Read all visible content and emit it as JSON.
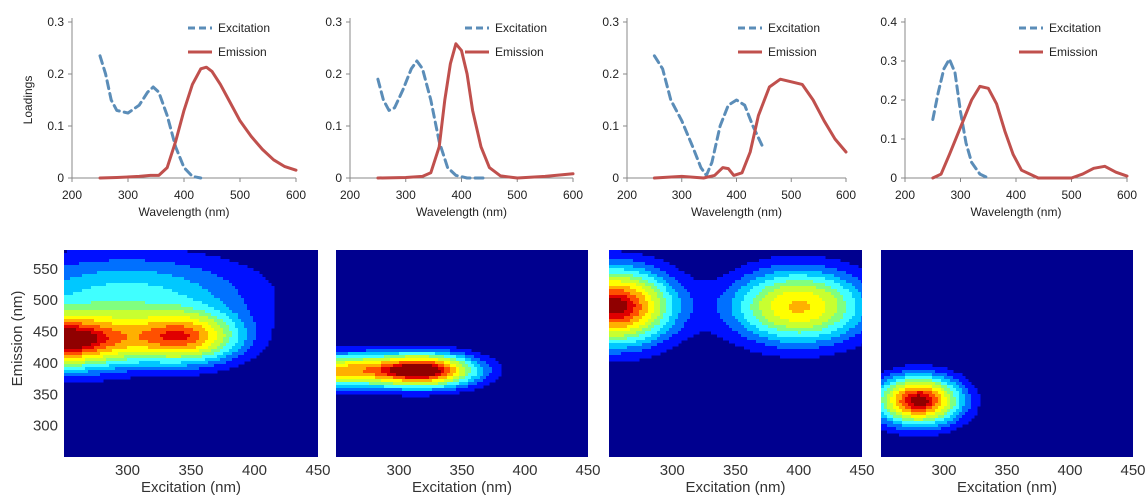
{
  "colors": {
    "excitation": "#5b8db8",
    "emission": "#c0504d",
    "heatmap_background": "#00008f"
  },
  "chart_data": [
    {
      "type": "line",
      "xlabel": "Wavelength (nm)",
      "ylabel": "Loadings",
      "xlim": [
        200,
        600
      ],
      "xticks": [
        "200",
        "300",
        "400",
        "500",
        "600"
      ],
      "ylim": [
        0,
        0.3
      ],
      "yticks": [
        "0",
        "0.1",
        "0.2",
        "0.3"
      ],
      "legend": [
        "Excitation",
        "Emission"
      ],
      "series": [
        {
          "name": "Excitation",
          "style": "dashed",
          "points": [
            [
              250,
              0.235
            ],
            [
              260,
              0.2
            ],
            [
              270,
              0.15
            ],
            [
              280,
              0.13
            ],
            [
              300,
              0.125
            ],
            [
              320,
              0.14
            ],
            [
              335,
              0.165
            ],
            [
              345,
              0.175
            ],
            [
              355,
              0.165
            ],
            [
              370,
              0.12
            ],
            [
              385,
              0.06
            ],
            [
              400,
              0.02
            ],
            [
              415,
              0.003
            ],
            [
              430,
              0.0
            ]
          ]
        },
        {
          "name": "Emission",
          "style": "solid",
          "points": [
            [
              250,
              0
            ],
            [
              280,
              0.001
            ],
            [
              320,
              0.003
            ],
            [
              340,
              0.005
            ],
            [
              355,
              0.005
            ],
            [
              370,
              0.02
            ],
            [
              385,
              0.07
            ],
            [
              400,
              0.13
            ],
            [
              415,
              0.18
            ],
            [
              430,
              0.21
            ],
            [
              440,
              0.213
            ],
            [
              450,
              0.205
            ],
            [
              465,
              0.18
            ],
            [
              480,
              0.15
            ],
            [
              500,
              0.11
            ],
            [
              520,
              0.08
            ],
            [
              540,
              0.055
            ],
            [
              560,
              0.035
            ],
            [
              580,
              0.022
            ],
            [
              600,
              0.015
            ]
          ]
        }
      ]
    },
    {
      "type": "line",
      "xlabel": "Wavelength (nm)",
      "ylabel": "",
      "xlim": [
        200,
        600
      ],
      "xticks": [
        "200",
        "300",
        "400",
        "500",
        "600"
      ],
      "ylim": [
        0,
        0.3
      ],
      "yticks": [
        "0",
        "0.1",
        "0.2",
        "0.3"
      ],
      "legend": [
        "Excitation",
        "Emission"
      ],
      "series": [
        {
          "name": "Excitation",
          "style": "dashed",
          "points": [
            [
              250,
              0.19
            ],
            [
              260,
              0.15
            ],
            [
              270,
              0.13
            ],
            [
              280,
              0.135
            ],
            [
              295,
              0.17
            ],
            [
              310,
              0.21
            ],
            [
              320,
              0.225
            ],
            [
              330,
              0.21
            ],
            [
              345,
              0.15
            ],
            [
              360,
              0.07
            ],
            [
              375,
              0.02
            ],
            [
              390,
              0.005
            ],
            [
              410,
              0.0
            ],
            [
              440,
              0.0
            ]
          ]
        },
        {
          "name": "Emission",
          "style": "solid",
          "points": [
            [
              250,
              0
            ],
            [
              300,
              0.001
            ],
            [
              330,
              0.003
            ],
            [
              345,
              0.01
            ],
            [
              360,
              0.06
            ],
            [
              370,
              0.15
            ],
            [
              380,
              0.22
            ],
            [
              390,
              0.258
            ],
            [
              400,
              0.245
            ],
            [
              410,
              0.2
            ],
            [
              420,
              0.13
            ],
            [
              435,
              0.06
            ],
            [
              450,
              0.02
            ],
            [
              470,
              0.004
            ],
            [
              500,
              0.0
            ],
            [
              550,
              0.003
            ],
            [
              600,
              0.008
            ]
          ]
        }
      ]
    },
    {
      "type": "line",
      "xlabel": "Wavelength (nm)",
      "ylabel": "",
      "xlim": [
        200,
        600
      ],
      "xticks": [
        "200",
        "300",
        "400",
        "500",
        "600"
      ],
      "ylim": [
        0,
        0.3
      ],
      "yticks": [
        "0",
        "0.1",
        "0.2",
        "0.3"
      ],
      "legend": [
        "Excitation",
        "Emission"
      ],
      "series": [
        {
          "name": "Excitation",
          "style": "dashed",
          "points": [
            [
              250,
              0.235
            ],
            [
              265,
              0.21
            ],
            [
              280,
              0.15
            ],
            [
              300,
              0.11
            ],
            [
              320,
              0.06
            ],
            [
              335,
              0.02
            ],
            [
              345,
              0.005
            ],
            [
              355,
              0.03
            ],
            [
              370,
              0.1
            ],
            [
              385,
              0.14
            ],
            [
              400,
              0.15
            ],
            [
              415,
              0.14
            ],
            [
              430,
              0.1
            ],
            [
              450,
              0.055
            ]
          ]
        },
        {
          "name": "Emission",
          "style": "solid",
          "points": [
            [
              250,
              0
            ],
            [
              300,
              0.003
            ],
            [
              340,
              0.0
            ],
            [
              360,
              0.005
            ],
            [
              375,
              0.02
            ],
            [
              385,
              0.018
            ],
            [
              395,
              0.005
            ],
            [
              410,
              0.01
            ],
            [
              425,
              0.05
            ],
            [
              440,
              0.12
            ],
            [
              460,
              0.175
            ],
            [
              480,
              0.19
            ],
            [
              500,
              0.185
            ],
            [
              520,
              0.18
            ],
            [
              540,
              0.15
            ],
            [
              560,
              0.11
            ],
            [
              580,
              0.075
            ],
            [
              600,
              0.05
            ]
          ]
        }
      ]
    },
    {
      "type": "line",
      "xlabel": "Wavelength (nm)",
      "ylabel": "",
      "xlim": [
        200,
        600
      ],
      "xticks": [
        "200",
        "300",
        "400",
        "500",
        "600"
      ],
      "ylim": [
        0,
        0.4
      ],
      "yticks": [
        "0",
        "0.1",
        "0.2",
        "0.3",
        "0.4"
      ],
      "legend": [
        "Excitation",
        "Emission"
      ],
      "series": [
        {
          "name": "Excitation",
          "style": "dashed",
          "points": [
            [
              250,
              0.15
            ],
            [
              260,
              0.22
            ],
            [
              270,
              0.28
            ],
            [
              280,
              0.305
            ],
            [
              290,
              0.27
            ],
            [
              300,
              0.17
            ],
            [
              310,
              0.09
            ],
            [
              320,
              0.04
            ],
            [
              335,
              0.01
            ],
            [
              350,
              0.0
            ]
          ]
        },
        {
          "name": "Emission",
          "style": "solid",
          "points": [
            [
              250,
              0.0
            ],
            [
              265,
              0.01
            ],
            [
              280,
              0.06
            ],
            [
              300,
              0.13
            ],
            [
              320,
              0.2
            ],
            [
              335,
              0.235
            ],
            [
              350,
              0.23
            ],
            [
              365,
              0.19
            ],
            [
              380,
              0.12
            ],
            [
              395,
              0.06
            ],
            [
              410,
              0.02
            ],
            [
              425,
              0.01
            ],
            [
              440,
              0.0
            ],
            [
              500,
              0.0
            ],
            [
              520,
              0.01
            ],
            [
              540,
              0.025
            ],
            [
              560,
              0.03
            ],
            [
              580,
              0.015
            ],
            [
              600,
              0.005
            ]
          ]
        }
      ]
    },
    {
      "type": "heatmap",
      "xlabel": "Excitation (nm)",
      "ylabel": "Emission (nm)",
      "xlim": [
        250,
        450
      ],
      "ylim": [
        250,
        580
      ],
      "xticks": [
        "300",
        "350",
        "400",
        "450"
      ],
      "yticks": [
        "300",
        "350",
        "400",
        "450",
        "500",
        "550"
      ],
      "peaks": [
        {
          "ex": 250,
          "em": 435,
          "amp": 1.0,
          "sx": 40,
          "sy": 30
        },
        {
          "ex": 345,
          "em": 440,
          "amp": 0.75,
          "sx": 30,
          "sy": 28
        },
        {
          "ex": 300,
          "em": 510,
          "amp": 0.35,
          "sx": 70,
          "sy": 45
        }
      ]
    },
    {
      "type": "heatmap",
      "xlabel": "Excitation (nm)",
      "ylabel": "",
      "xlim": [
        250,
        450
      ],
      "ylim": [
        250,
        580
      ],
      "xticks": [
        "300",
        "350",
        "400",
        "450"
      ],
      "yticks": [],
      "peaks": [
        {
          "ex": 320,
          "em": 388,
          "amp": 1.0,
          "sx": 28,
          "sy": 18
        },
        {
          "ex": 250,
          "em": 388,
          "amp": 0.7,
          "sx": 35,
          "sy": 18
        }
      ]
    },
    {
      "type": "heatmap",
      "xlabel": "Excitation (nm)",
      "ylabel": "",
      "xlim": [
        250,
        450
      ],
      "ylim": [
        250,
        580
      ],
      "xticks": [
        "300",
        "350",
        "400",
        "450"
      ],
      "yticks": [],
      "peaks": [
        {
          "ex": 255,
          "em": 490,
          "amp": 1.0,
          "sx": 30,
          "sy": 40
        },
        {
          "ex": 400,
          "em": 490,
          "amp": 0.72,
          "sx": 36,
          "sy": 40
        }
      ]
    },
    {
      "type": "heatmap",
      "xlabel": "Excitation (nm)",
      "ylabel": "",
      "xlim": [
        250,
        450
      ],
      "ylim": [
        250,
        580
      ],
      "xticks": [
        "300",
        "350",
        "400",
        "450"
      ],
      "yticks": [],
      "peaks": [
        {
          "ex": 280,
          "em": 340,
          "amp": 1.0,
          "sx": 22,
          "sy": 26
        }
      ]
    }
  ]
}
